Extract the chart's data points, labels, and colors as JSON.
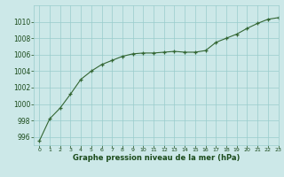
{
  "x": [
    0,
    1,
    2,
    3,
    4,
    5,
    6,
    7,
    8,
    9,
    10,
    11,
    12,
    13,
    14,
    15,
    16,
    17,
    18,
    19,
    20,
    21,
    22,
    23
  ],
  "y": [
    995.5,
    998.2,
    999.5,
    1001.2,
    1003.0,
    1004.0,
    1004.8,
    1005.3,
    1005.8,
    1006.1,
    1006.2,
    1006.2,
    1006.3,
    1006.4,
    1006.3,
    1006.3,
    1006.5,
    1007.5,
    1008.0,
    1008.5,
    1009.2,
    1009.8,
    1010.3,
    1010.5
  ],
  "line_color": "#336633",
  "marker_color": "#336633",
  "bg_color": "#cce8e8",
  "grid_color": "#99cccc",
  "xlabel": "Graphe pression niveau de la mer (hPa)",
  "xlabel_color": "#1a4a1a",
  "tick_color": "#1a4a1a",
  "ylim": [
    995,
    1012
  ],
  "xlim": [
    -0.5,
    23
  ],
  "yticks": [
    996,
    998,
    1000,
    1002,
    1004,
    1006,
    1008,
    1010
  ],
  "xticks": [
    0,
    1,
    2,
    3,
    4,
    5,
    6,
    7,
    8,
    9,
    10,
    11,
    12,
    13,
    14,
    15,
    16,
    17,
    18,
    19,
    20,
    21,
    22,
    23
  ]
}
